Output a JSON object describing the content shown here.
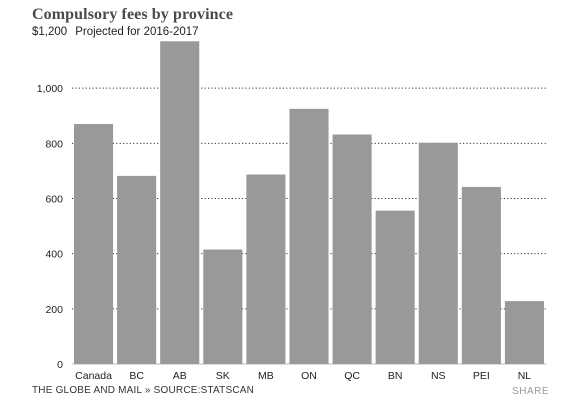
{
  "header": {
    "title": "Compulsory fees by province",
    "y_top_label": "$1,200",
    "note": "Projected for 2016-2017"
  },
  "footer": {
    "credit": "THE GLOBE AND MAIL » SOURCE:STATSCAN",
    "share_label": "SHARE"
  },
  "colors": {
    "bar": "#999999",
    "grid": "#333333",
    "text": "#222222"
  },
  "chart_data": {
    "type": "bar",
    "title": "Compulsory fees by province",
    "subtitle": "Projected for 2016-2017",
    "categories": [
      "Canada",
      "BC",
      "AB",
      "SK",
      "MB",
      "ON",
      "QC",
      "BN",
      "NS",
      "PEI",
      "NL"
    ],
    "values": [
      870,
      682,
      1170,
      415,
      687,
      925,
      832,
      556,
      802,
      642,
      228
    ],
    "ylim": [
      0,
      1200
    ],
    "yticks": [
      0,
      200,
      400,
      600,
      800,
      1000
    ],
    "ytick_labels": [
      "0",
      "200",
      "400",
      "600",
      "800",
      "1,000"
    ],
    "grid": "horizontal-dotted",
    "xlabel": "",
    "ylabel": ""
  }
}
